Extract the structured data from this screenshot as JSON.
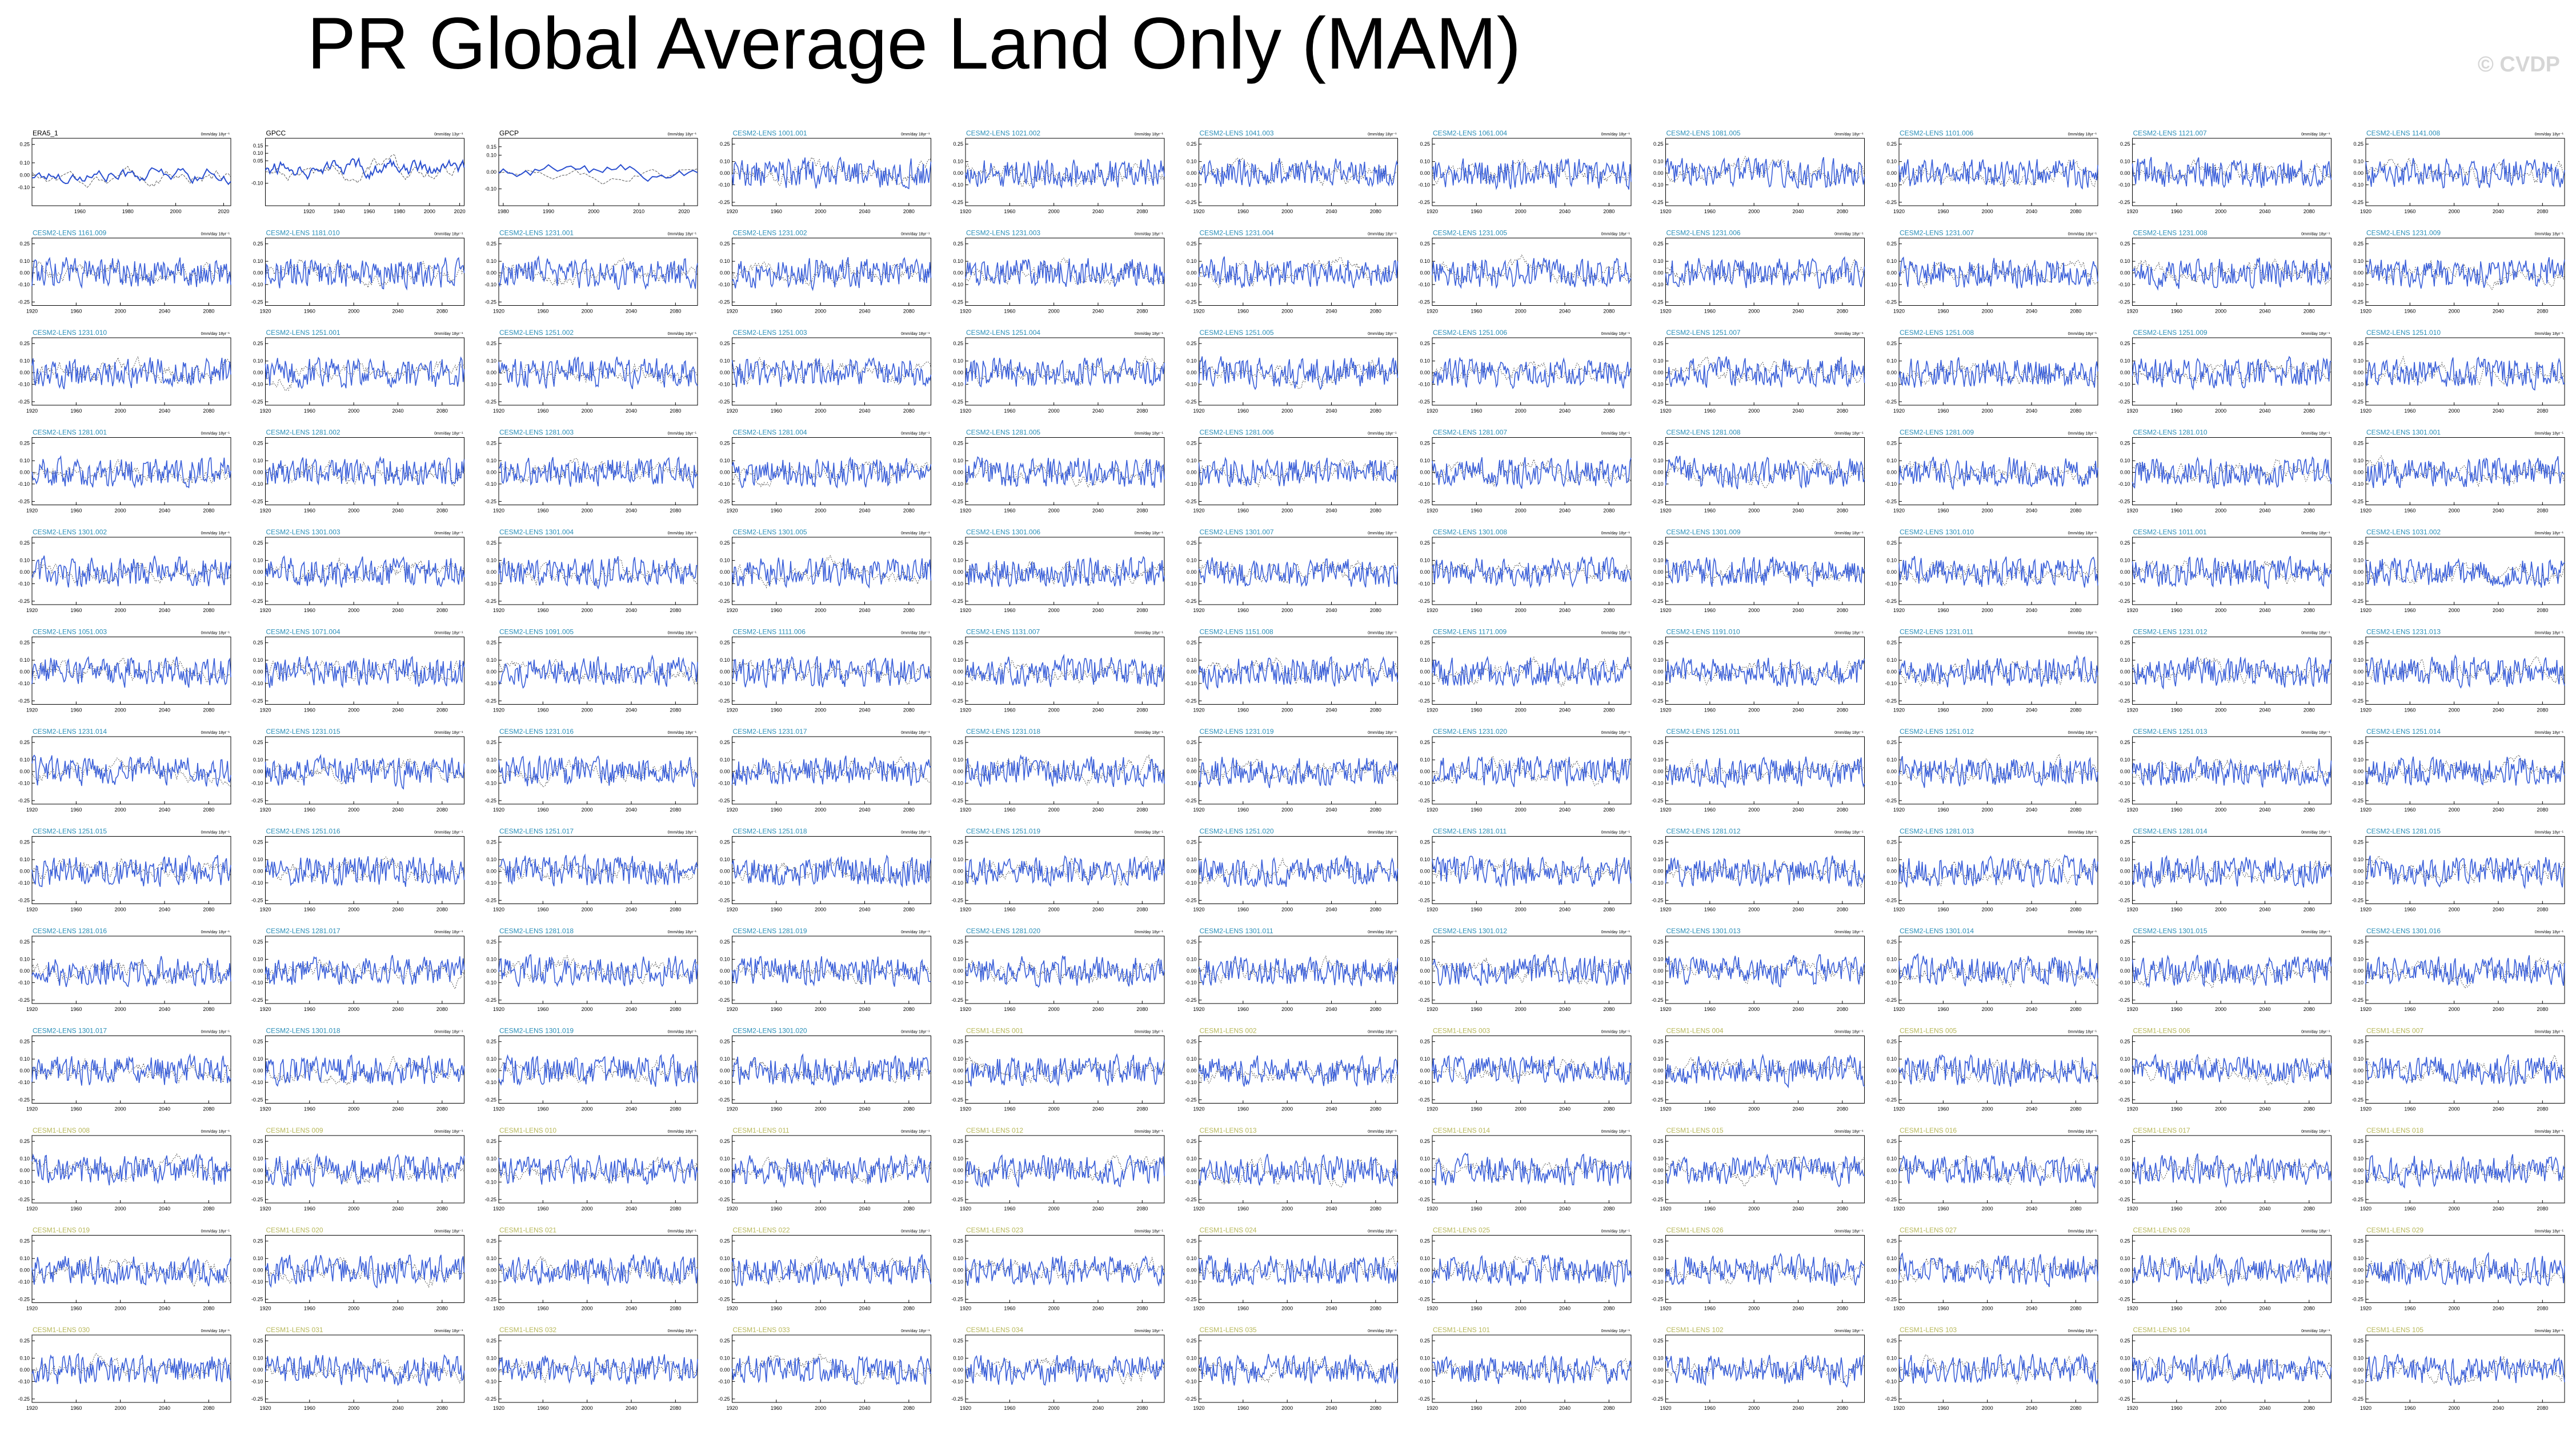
{
  "title": "PR Global Average Land Only (MAM)",
  "watermark": "© CVDP",
  "colors": {
    "obs_title": "#000000",
    "cesm2_title": "#2a8fb8",
    "cesm1_title": "#b8b85a",
    "model_line": "#3a5fd9",
    "obs_line": "#555555"
  },
  "chart_data": {
    "type": "line",
    "grid": {
      "rows": 13,
      "cols": 11
    },
    "panels": [
      {
        "label": "ERA5_1",
        "units": "0mm/day 18yr⁻¹",
        "kind": "obs",
        "xticks": [
          1960,
          1980,
          2000,
          2020
        ],
        "yticks": [
          0.25,
          0.1,
          0.0,
          -0.1
        ],
        "xlim": [
          1940,
          2023
        ],
        "ylim": [
          -0.25,
          0.3
        ]
      },
      {
        "label": "GPCC",
        "units": "0mm/day 13yr⁻¹",
        "kind": "obs",
        "xticks": [
          1920,
          1940,
          1960,
          1980,
          2000,
          2020
        ],
        "yticks": [
          0.15,
          0.1,
          0.05,
          -0.1
        ],
        "xlim": [
          1891,
          2023
        ],
        "ylim": [
          -0.25,
          0.2
        ]
      },
      {
        "label": "GPCP",
        "units": "0mm/day 18yr⁻¹",
        "kind": "obs",
        "xticks": [
          1980,
          1990,
          2000,
          2010,
          2020
        ],
        "yticks": [
          0.15,
          0.1,
          0.0,
          -0.1
        ],
        "xlim": [
          1979,
          2023
        ],
        "ylim": [
          -0.2,
          0.2
        ]
      },
      {
        "label": "CESM2-LENS 1001.001",
        "kind": "cesm2"
      },
      {
        "label": "CESM2-LENS 1021.002",
        "kind": "cesm2"
      },
      {
        "label": "CESM2-LENS 1041.003",
        "kind": "cesm2"
      },
      {
        "label": "CESM2-LENS 1061.004",
        "kind": "cesm2"
      },
      {
        "label": "CESM2-LENS 1081.005",
        "kind": "cesm2"
      },
      {
        "label": "CESM2-LENS 1101.006",
        "kind": "cesm2"
      },
      {
        "label": "CESM2-LENS 1121.007",
        "kind": "cesm2"
      },
      {
        "label": "CESM2-LENS 1141.008",
        "kind": "cesm2"
      },
      {
        "label": "CESM2-LENS 1161.009",
        "kind": "cesm2"
      },
      {
        "label": "CESM2-LENS 1181.010",
        "kind": "cesm2"
      },
      {
        "label": "CESM2-LENS 1231.001",
        "kind": "cesm2"
      },
      {
        "label": "CESM2-LENS 1231.002",
        "kind": "cesm2"
      },
      {
        "label": "CESM2-LENS 1231.003",
        "kind": "cesm2"
      },
      {
        "label": "CESM2-LENS 1231.004",
        "kind": "cesm2"
      },
      {
        "label": "CESM2-LENS 1231.005",
        "kind": "cesm2"
      },
      {
        "label": "CESM2-LENS 1231.006",
        "kind": "cesm2"
      },
      {
        "label": "CESM2-LENS 1231.007",
        "kind": "cesm2"
      },
      {
        "label": "CESM2-LENS 1231.008",
        "kind": "cesm2"
      },
      {
        "label": "CESM2-LENS 1231.009",
        "kind": "cesm2"
      },
      {
        "label": "CESM2-LENS 1231.010",
        "kind": "cesm2"
      },
      {
        "label": "CESM2-LENS 1251.001",
        "kind": "cesm2"
      },
      {
        "label": "CESM2-LENS 1251.002",
        "kind": "cesm2"
      },
      {
        "label": "CESM2-LENS 1251.003",
        "kind": "cesm2"
      },
      {
        "label": "CESM2-LENS 1251.004",
        "kind": "cesm2"
      },
      {
        "label": "CESM2-LENS 1251.005",
        "kind": "cesm2"
      },
      {
        "label": "CESM2-LENS 1251.006",
        "kind": "cesm2"
      },
      {
        "label": "CESM2-LENS 1251.007",
        "kind": "cesm2"
      },
      {
        "label": "CESM2-LENS 1251.008",
        "kind": "cesm2"
      },
      {
        "label": "CESM2-LENS 1251.009",
        "kind": "cesm2"
      },
      {
        "label": "CESM2-LENS 1251.010",
        "kind": "cesm2"
      },
      {
        "label": "CESM2-LENS 1281.001",
        "kind": "cesm2"
      },
      {
        "label": "CESM2-LENS 1281.002",
        "kind": "cesm2"
      },
      {
        "label": "CESM2-LENS 1281.003",
        "kind": "cesm2"
      },
      {
        "label": "CESM2-LENS 1281.004",
        "kind": "cesm2"
      },
      {
        "label": "CESM2-LENS 1281.005",
        "kind": "cesm2"
      },
      {
        "label": "CESM2-LENS 1281.006",
        "kind": "cesm2"
      },
      {
        "label": "CESM2-LENS 1281.007",
        "kind": "cesm2"
      },
      {
        "label": "CESM2-LENS 1281.008",
        "kind": "cesm2"
      },
      {
        "label": "CESM2-LENS 1281.009",
        "kind": "cesm2"
      },
      {
        "label": "CESM2-LENS 1281.010",
        "kind": "cesm2"
      },
      {
        "label": "CESM2-LENS 1301.001",
        "kind": "cesm2"
      },
      {
        "label": "CESM2-LENS 1301.002",
        "kind": "cesm2"
      },
      {
        "label": "CESM2-LENS 1301.003",
        "kind": "cesm2"
      },
      {
        "label": "CESM2-LENS 1301.004",
        "kind": "cesm2"
      },
      {
        "label": "CESM2-LENS 1301.005",
        "kind": "cesm2"
      },
      {
        "label": "CESM2-LENS 1301.006",
        "kind": "cesm2"
      },
      {
        "label": "CESM2-LENS 1301.007",
        "kind": "cesm2"
      },
      {
        "label": "CESM2-LENS 1301.008",
        "kind": "cesm2"
      },
      {
        "label": "CESM2-LENS 1301.009",
        "kind": "cesm2"
      },
      {
        "label": "CESM2-LENS 1301.010",
        "kind": "cesm2"
      },
      {
        "label": "CESM2-LENS 1011.001",
        "kind": "cesm2"
      },
      {
        "label": "CESM2-LENS 1031.002",
        "kind": "cesm2"
      },
      {
        "label": "CESM2-LENS 1051.003",
        "kind": "cesm2"
      },
      {
        "label": "CESM2-LENS 1071.004",
        "kind": "cesm2"
      },
      {
        "label": "CESM2-LENS 1091.005",
        "kind": "cesm2"
      },
      {
        "label": "CESM2-LENS 1111.006",
        "kind": "cesm2"
      },
      {
        "label": "CESM2-LENS 1131.007",
        "kind": "cesm2"
      },
      {
        "label": "CESM2-LENS 1151.008",
        "kind": "cesm2"
      },
      {
        "label": "CESM2-LENS 1171.009",
        "kind": "cesm2"
      },
      {
        "label": "CESM2-LENS 1191.010",
        "kind": "cesm2"
      },
      {
        "label": "CESM2-LENS 1231.011",
        "kind": "cesm2"
      },
      {
        "label": "CESM2-LENS 1231.012",
        "kind": "cesm2"
      },
      {
        "label": "CESM2-LENS 1231.013",
        "kind": "cesm2"
      },
      {
        "label": "CESM2-LENS 1231.014",
        "kind": "cesm2"
      },
      {
        "label": "CESM2-LENS 1231.015",
        "kind": "cesm2"
      },
      {
        "label": "CESM2-LENS 1231.016",
        "kind": "cesm2"
      },
      {
        "label": "CESM2-LENS 1231.017",
        "kind": "cesm2"
      },
      {
        "label": "CESM2-LENS 1231.018",
        "kind": "cesm2"
      },
      {
        "label": "CESM2-LENS 1231.019",
        "kind": "cesm2"
      },
      {
        "label": "CESM2-LENS 1231.020",
        "kind": "cesm2"
      },
      {
        "label": "CESM2-LENS 1251.011",
        "kind": "cesm2"
      },
      {
        "label": "CESM2-LENS 1251.012",
        "kind": "cesm2"
      },
      {
        "label": "CESM2-LENS 1251.013",
        "kind": "cesm2"
      },
      {
        "label": "CESM2-LENS 1251.014",
        "kind": "cesm2"
      },
      {
        "label": "CESM2-LENS 1251.015",
        "kind": "cesm2"
      },
      {
        "label": "CESM2-LENS 1251.016",
        "kind": "cesm2"
      },
      {
        "label": "CESM2-LENS 1251.017",
        "kind": "cesm2"
      },
      {
        "label": "CESM2-LENS 1251.018",
        "kind": "cesm2"
      },
      {
        "label": "CESM2-LENS 1251.019",
        "kind": "cesm2"
      },
      {
        "label": "CESM2-LENS 1251.020",
        "kind": "cesm2"
      },
      {
        "label": "CESM2-LENS 1281.011",
        "kind": "cesm2"
      },
      {
        "label": "CESM2-LENS 1281.012",
        "kind": "cesm2"
      },
      {
        "label": "CESM2-LENS 1281.013",
        "kind": "cesm2"
      },
      {
        "label": "CESM2-LENS 1281.014",
        "kind": "cesm2"
      },
      {
        "label": "CESM2-LENS 1281.015",
        "kind": "cesm2"
      },
      {
        "label": "CESM2-LENS 1281.016",
        "kind": "cesm2"
      },
      {
        "label": "CESM2-LENS 1281.017",
        "kind": "cesm2"
      },
      {
        "label": "CESM2-LENS 1281.018",
        "kind": "cesm2"
      },
      {
        "label": "CESM2-LENS 1281.019",
        "kind": "cesm2"
      },
      {
        "label": "CESM2-LENS 1281.020",
        "kind": "cesm2"
      },
      {
        "label": "CESM2-LENS 1301.011",
        "kind": "cesm2"
      },
      {
        "label": "CESM2-LENS 1301.012",
        "kind": "cesm2"
      },
      {
        "label": "CESM2-LENS 1301.013",
        "kind": "cesm2"
      },
      {
        "label": "CESM2-LENS 1301.014",
        "kind": "cesm2"
      },
      {
        "label": "CESM2-LENS 1301.015",
        "kind": "cesm2"
      },
      {
        "label": "CESM2-LENS 1301.016",
        "kind": "cesm2"
      },
      {
        "label": "CESM2-LENS 1301.017",
        "kind": "cesm2"
      },
      {
        "label": "CESM2-LENS 1301.018",
        "kind": "cesm2"
      },
      {
        "label": "CESM2-LENS 1301.019",
        "kind": "cesm2"
      },
      {
        "label": "CESM2-LENS 1301.020",
        "kind": "cesm2"
      },
      {
        "label": "CESM1-LENS 001",
        "kind": "cesm1"
      },
      {
        "label": "CESM1-LENS 002",
        "kind": "cesm1"
      },
      {
        "label": "CESM1-LENS 003",
        "kind": "cesm1"
      },
      {
        "label": "CESM1-LENS 004",
        "kind": "cesm1"
      },
      {
        "label": "CESM1-LENS 005",
        "kind": "cesm1"
      },
      {
        "label": "CESM1-LENS 006",
        "kind": "cesm1"
      },
      {
        "label": "CESM1-LENS 007",
        "kind": "cesm1"
      },
      {
        "label": "CESM1-LENS 008",
        "kind": "cesm1"
      },
      {
        "label": "CESM1-LENS 009",
        "kind": "cesm1"
      },
      {
        "label": "CESM1-LENS 010",
        "kind": "cesm1"
      },
      {
        "label": "CESM1-LENS 011",
        "kind": "cesm1"
      },
      {
        "label": "CESM1-LENS 012",
        "kind": "cesm1"
      },
      {
        "label": "CESM1-LENS 013",
        "kind": "cesm1"
      },
      {
        "label": "CESM1-LENS 014",
        "kind": "cesm1"
      },
      {
        "label": "CESM1-LENS 015",
        "kind": "cesm1"
      },
      {
        "label": "CESM1-LENS 016",
        "kind": "cesm1"
      },
      {
        "label": "CESM1-LENS 017",
        "kind": "cesm1"
      },
      {
        "label": "CESM1-LENS 018",
        "kind": "cesm1"
      },
      {
        "label": "CESM1-LENS 019",
        "kind": "cesm1"
      },
      {
        "label": "CESM1-LENS 020",
        "kind": "cesm1"
      },
      {
        "label": "CESM1-LENS 021",
        "kind": "cesm1"
      },
      {
        "label": "CESM1-LENS 022",
        "kind": "cesm1"
      },
      {
        "label": "CESM1-LENS 023",
        "kind": "cesm1"
      },
      {
        "label": "CESM1-LENS 024",
        "kind": "cesm1"
      },
      {
        "label": "CESM1-LENS 025",
        "kind": "cesm1"
      },
      {
        "label": "CESM1-LENS 026",
        "kind": "cesm1"
      },
      {
        "label": "CESM1-LENS 027",
        "kind": "cesm1"
      },
      {
        "label": "CESM1-LENS 028",
        "kind": "cesm1"
      },
      {
        "label": "CESM1-LENS 029",
        "kind": "cesm1"
      },
      {
        "label": "CESM1-LENS 030",
        "kind": "cesm1"
      },
      {
        "label": "CESM1-LENS 031",
        "kind": "cesm1"
      },
      {
        "label": "CESM1-LENS 032",
        "kind": "cesm1"
      },
      {
        "label": "CESM1-LENS 033",
        "kind": "cesm1"
      },
      {
        "label": "CESM1-LENS 034",
        "kind": "cesm1"
      },
      {
        "label": "CESM1-LENS 035",
        "kind": "cesm1"
      },
      {
        "label": "CESM1-LENS 101",
        "kind": "cesm1"
      },
      {
        "label": "CESM1-LENS 102",
        "kind": "cesm1"
      },
      {
        "label": "CESM1-LENS 103",
        "kind": "cesm1"
      },
      {
        "label": "CESM1-LENS 104",
        "kind": "cesm1"
      },
      {
        "label": "CESM1-LENS 105",
        "kind": "cesm1"
      }
    ],
    "model_defaults": {
      "units": "0mm/day 18yr⁻¹",
      "xticks": [
        1920,
        1960,
        2000,
        2040,
        2080
      ],
      "xlim": [
        1920,
        2100
      ],
      "yticks": [
        0.25,
        0.1,
        0.0,
        -0.1,
        -0.25
      ],
      "ylim": [
        -0.28,
        0.3
      ]
    },
    "legend": "none",
    "grid_lines": false
  }
}
